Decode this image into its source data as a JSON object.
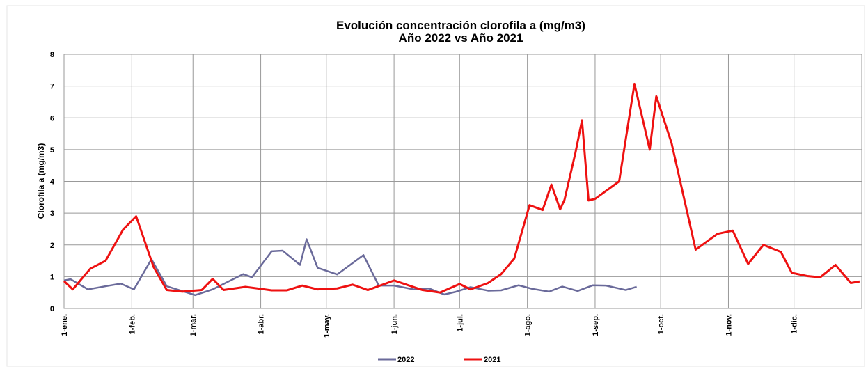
{
  "chart_data": {
    "type": "line",
    "title": "Evolución concentración clorofila a (mg/m3)",
    "subtitle": "Año 2022 vs Año 2021",
    "y_label": "Clorofila a (mg/m3)",
    "xlim": [
      1,
      366
    ],
    "xticks": [
      {
        "value": 1,
        "label": "1-ene."
      },
      {
        "value": 32,
        "label": "1-feb."
      },
      {
        "value": 60,
        "label": "1-mar."
      },
      {
        "value": 91,
        "label": "1-abr."
      },
      {
        "value": 121,
        "label": "1-may."
      },
      {
        "value": 152,
        "label": "1-jun."
      },
      {
        "value": 182,
        "label": "1-jul."
      },
      {
        "value": 213,
        "label": "1-ago."
      },
      {
        "value": 244,
        "label": "1-sep."
      },
      {
        "value": 274,
        "label": "1-oct."
      },
      {
        "value": 305,
        "label": "1-nov."
      },
      {
        "value": 335,
        "label": "1-dic."
      }
    ],
    "ylim": [
      0,
      8
    ],
    "yticks": [
      0,
      1,
      2,
      3,
      4,
      5,
      6,
      7,
      8
    ],
    "grid": true,
    "legend": "bottom",
    "series": [
      {
        "name": "2022",
        "color": "#6a6a9a",
        "x": [
          1,
          4,
          12,
          20,
          27,
          33,
          41,
          48,
          61,
          69,
          83,
          87,
          96,
          101,
          109,
          112,
          117,
          126,
          138,
          145,
          152,
          161,
          168,
          175,
          180,
          187,
          195,
          201,
          209,
          215,
          223,
          229,
          236,
          243,
          249,
          258,
          263
        ],
        "values": [
          0.88,
          0.92,
          0.6,
          0.7,
          0.78,
          0.6,
          1.55,
          0.7,
          0.42,
          0.6,
          1.08,
          0.98,
          1.8,
          1.82,
          1.37,
          2.18,
          1.28,
          1.07,
          1.68,
          0.72,
          0.72,
          0.6,
          0.63,
          0.44,
          0.52,
          0.67,
          0.56,
          0.57,
          0.73,
          0.62,
          0.53,
          0.69,
          0.55,
          0.73,
          0.72,
          0.58,
          0.68
        ]
      },
      {
        "name": "2021",
        "color": "#ee1111",
        "x": [
          1,
          5,
          13,
          20,
          28,
          34,
          42,
          48,
          55,
          64,
          69,
          74,
          84,
          96,
          103,
          110,
          117,
          126,
          133,
          140,
          152,
          165,
          173,
          182,
          187,
          195,
          201,
          207,
          214,
          220,
          224,
          228,
          230,
          235,
          238,
          241,
          244,
          255,
          262,
          269,
          272,
          279,
          290,
          300,
          307,
          314,
          321,
          329,
          334,
          341,
          347,
          354,
          361,
          365
        ],
        "values": [
          0.86,
          0.6,
          1.25,
          1.5,
          2.48,
          2.9,
          1.3,
          0.58,
          0.53,
          0.58,
          0.93,
          0.58,
          0.68,
          0.57,
          0.57,
          0.72,
          0.6,
          0.63,
          0.75,
          0.58,
          0.88,
          0.58,
          0.5,
          0.77,
          0.6,
          0.8,
          1.08,
          1.57,
          3.25,
          3.1,
          3.9,
          3.12,
          3.42,
          4.9,
          5.92,
          3.4,
          3.45,
          4.0,
          7.07,
          5.0,
          6.68,
          5.2,
          1.85,
          2.35,
          2.45,
          1.4,
          2.0,
          1.78,
          1.12,
          1.02,
          0.98,
          1.37,
          0.8,
          0.85
        ]
      }
    ]
  }
}
